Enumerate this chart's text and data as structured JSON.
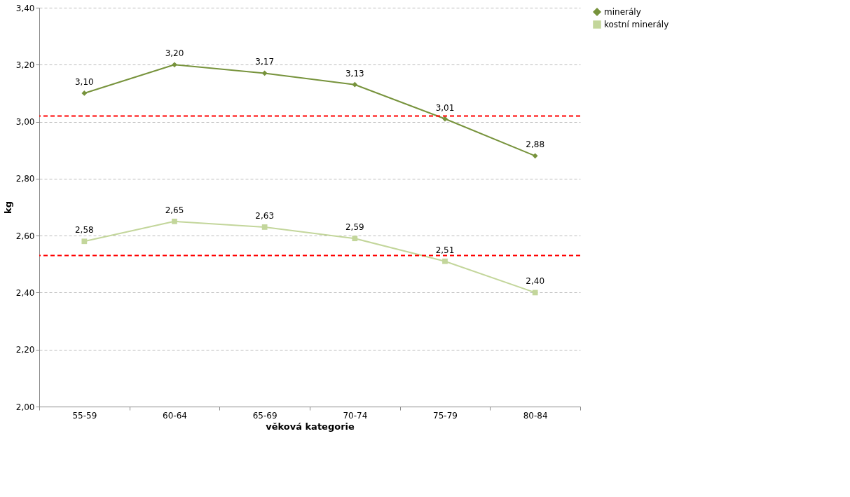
{
  "chart_data": {
    "type": "line",
    "xlabel": "věková kategorie",
    "ylabel": "kg",
    "categories": [
      "55-59",
      "60-64",
      "65-69",
      "70-74",
      "75-79",
      "80-84"
    ],
    "series": [
      {
        "name": "minerály",
        "color": "#77933c",
        "marker": "diamond",
        "values": [
          3.1,
          3.2,
          3.17,
          3.13,
          3.01,
          2.88
        ],
        "value_labels": [
          "3,10",
          "3,20",
          "3,17",
          "3,13",
          "3,01",
          "2,88"
        ]
      },
      {
        "name": "kostní minerály",
        "color": "#c3d69b",
        "marker": "square",
        "values": [
          2.58,
          2.65,
          2.63,
          2.59,
          2.51,
          2.4
        ],
        "value_labels": [
          "2,58",
          "2,65",
          "2,63",
          "2,59",
          "2,51",
          "2,40"
        ]
      }
    ],
    "ylim": [
      2.0,
      3.4
    ],
    "yticks": [
      {
        "value": 2.0,
        "label": "2,00"
      },
      {
        "value": 2.2,
        "label": "2,20"
      },
      {
        "value": 2.4,
        "label": "2,40"
      },
      {
        "value": 2.6,
        "label": "2,60"
      },
      {
        "value": 2.8,
        "label": "2,80"
      },
      {
        "value": 3.0,
        "label": "3,00"
      },
      {
        "value": 3.2,
        "label": "3,20"
      },
      {
        "value": 3.4,
        "label": "3,40"
      }
    ],
    "ref_lines": [
      {
        "axis": "y",
        "value": 3.02,
        "color": "#ff0000",
        "line_style": "dashed"
      },
      {
        "axis": "y",
        "value": 2.53,
        "color": "#ff0000",
        "line_style": "dashed"
      }
    ],
    "grid": "y",
    "legend": "right",
    "line_style": "solid"
  }
}
